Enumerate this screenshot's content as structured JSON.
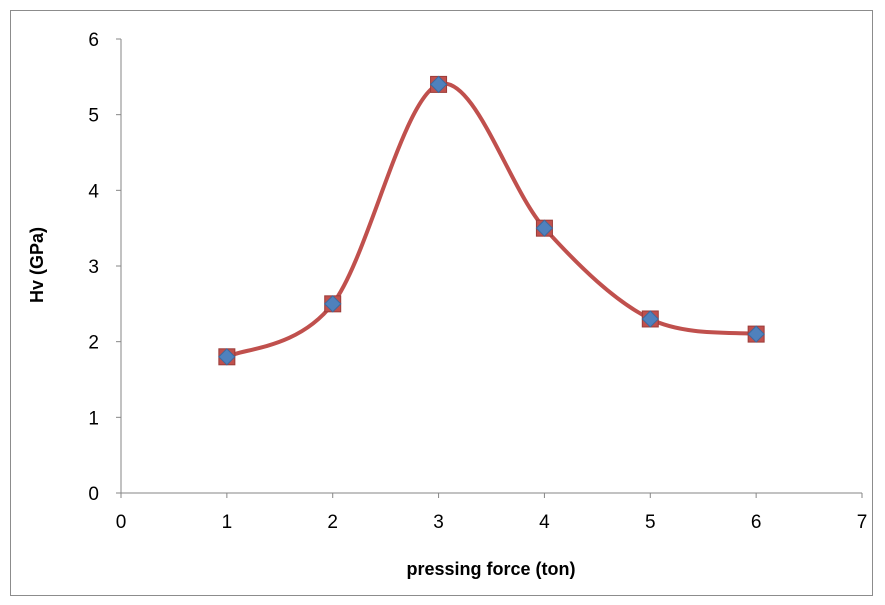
{
  "chart_data": {
    "type": "scatter",
    "title": "",
    "xlabel": "pressing force  (ton)",
    "ylabel": "Hv (GPa)",
    "xlim": [
      0,
      7
    ],
    "ylim": [
      0,
      6
    ],
    "xticks": [
      0,
      1,
      2,
      3,
      4,
      5,
      6,
      7
    ],
    "yticks": [
      0,
      1,
      2,
      3,
      4,
      5,
      6
    ],
    "grid": false,
    "legend": "none",
    "series": [
      {
        "x": [
          1,
          2,
          3,
          4,
          5,
          6
        ],
        "y": [
          1.8,
          2.5,
          5.4,
          3.5,
          2.3,
          2.1
        ],
        "line_color": "#c0504d",
        "square_marker_color": "#c0504d",
        "diamond_marker_color": "#4f81bd",
        "smooth": true
      }
    ]
  }
}
